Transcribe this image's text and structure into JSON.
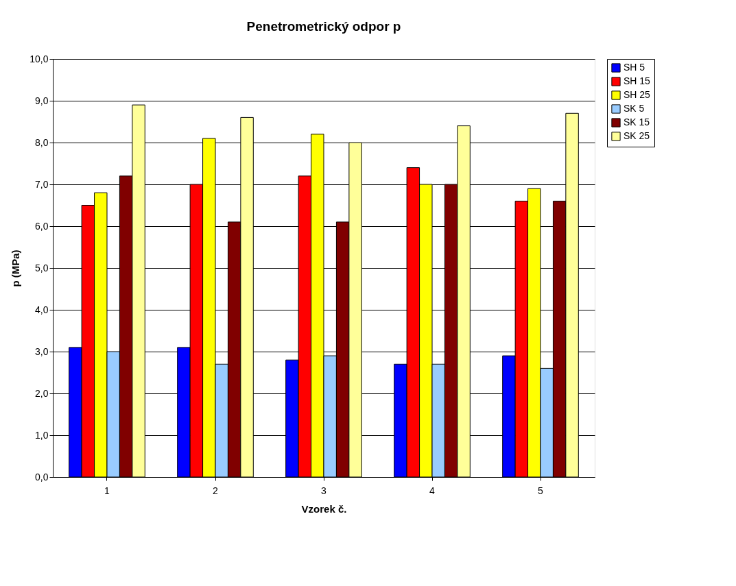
{
  "chart_data": {
    "type": "bar",
    "title": "Penetrometrický odpor p",
    "xlabel": "Vzorek č.",
    "ylabel": "p (MPa)",
    "categories": [
      "1",
      "2",
      "3",
      "4",
      "5"
    ],
    "series": [
      {
        "name": "SH 5",
        "color": "#0000ff",
        "values": [
          3.1,
          3.1,
          2.8,
          2.7,
          2.9
        ]
      },
      {
        "name": "SH 15",
        "color": "#ff0000",
        "values": [
          6.5,
          7.0,
          7.2,
          7.4,
          6.6
        ]
      },
      {
        "name": "SH 25",
        "color": "#ffff00",
        "values": [
          6.8,
          8.1,
          8.2,
          7.0,
          6.9
        ]
      },
      {
        "name": "SK 5",
        "color": "#99ccff",
        "values": [
          3.0,
          2.7,
          2.9,
          2.7,
          2.6
        ]
      },
      {
        "name": "SK 15",
        "color": "#800000",
        "values": [
          7.2,
          6.1,
          6.1,
          7.0,
          6.6
        ]
      },
      {
        "name": "SK 25",
        "color": "#ffff99",
        "values": [
          8.9,
          8.6,
          8.0,
          8.4,
          8.7
        ]
      }
    ],
    "ylim": [
      0,
      10
    ],
    "yticks": [
      {
        "value": 0,
        "label": "0,0"
      },
      {
        "value": 1,
        "label": "1,0"
      },
      {
        "value": 2,
        "label": "2,0"
      },
      {
        "value": 3,
        "label": "3,0"
      },
      {
        "value": 4,
        "label": "4,0"
      },
      {
        "value": 5,
        "label": "5,0"
      },
      {
        "value": 6,
        "label": "6,0"
      },
      {
        "value": 7,
        "label": "7,0"
      },
      {
        "value": 8,
        "label": "8,0"
      },
      {
        "value": 9,
        "label": "9,0"
      },
      {
        "value": 10,
        "label": "10,0"
      }
    ],
    "grid": "y",
    "legend": "right"
  }
}
